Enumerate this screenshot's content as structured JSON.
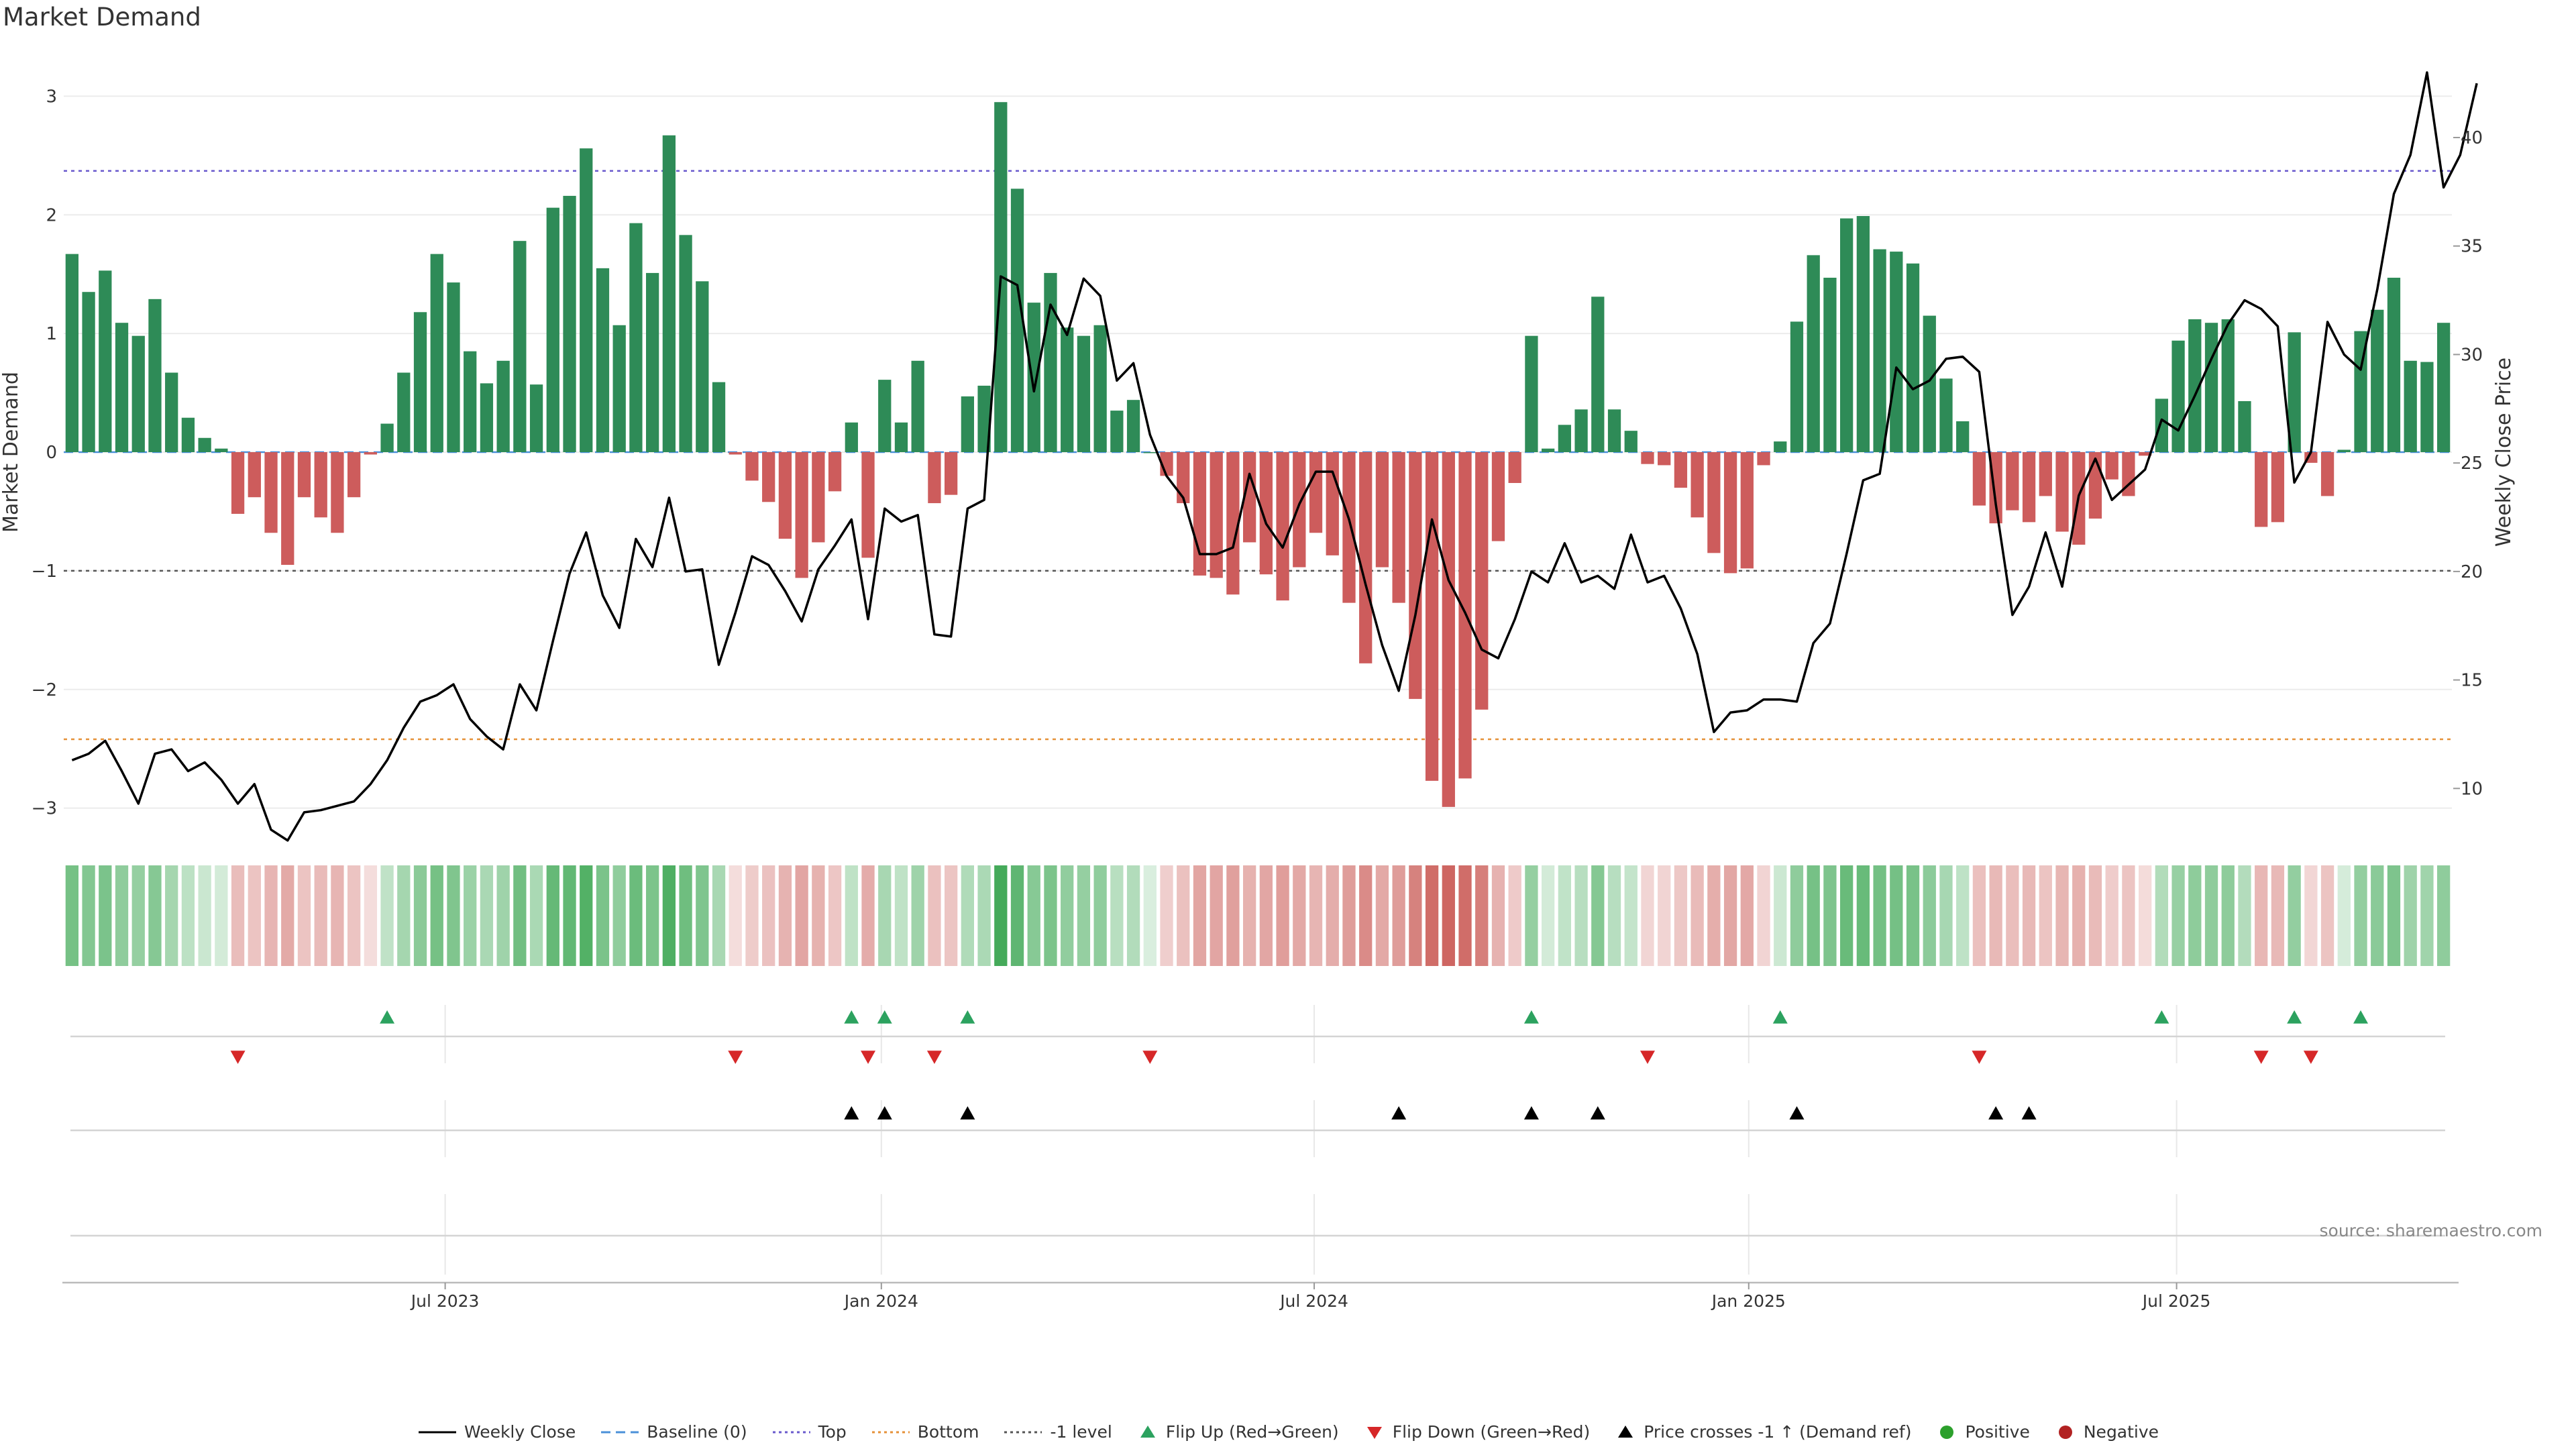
{
  "title": "Market Demand",
  "source": "source: sharemaestro.com",
  "legend": {
    "weekly_close": "Weekly Close",
    "baseline": "Baseline (0)",
    "top": "Top",
    "bottom": "Bottom",
    "minus1": "-1 level",
    "flip_up": "Flip Up (Red→Green)",
    "flip_down": "Flip Down (Green→Red)",
    "price_cross": "Price crosses -1 ↑ (Demand ref)",
    "positive": "Positive",
    "negative": "Negative"
  },
  "colors": {
    "positive": "#2e8b57",
    "negative": "#cd5c5c",
    "price": "#000000",
    "top": "#6a5acd",
    "bottom": "#e69138",
    "minus1": "#555555",
    "baseline": "#4a90d9",
    "flip_up": "#2ca25f",
    "flip_down": "#d62728",
    "positive_dot": "#2ca02c",
    "negative_dot": "#b22222"
  },
  "chart_data": {
    "type": "bar",
    "title": "Market Demand",
    "ylabel": "Market Demand",
    "y2label": "Weekly Close Price",
    "ylim": [
      -3.2,
      3.2
    ],
    "y2lim": [
      8,
      43
    ],
    "yticks": [
      3,
      2,
      1,
      0,
      -1,
      -2,
      -3
    ],
    "ytick_labels": [
      "3",
      "2",
      "1",
      "0",
      "−1",
      "−2",
      "−3"
    ],
    "y2ticks": [
      10,
      15,
      20,
      25,
      30,
      35,
      40
    ],
    "y2tick_labels": [
      "10",
      "15",
      "20",
      "25",
      "30",
      "35",
      "40"
    ],
    "xticks": [
      22.5,
      48.8,
      74.9,
      101.1,
      126.9
    ],
    "xtick_labels": [
      "Jul 2023",
      "Jan 2024",
      "Jul 2024",
      "Jan 2025",
      "Jul 2025"
    ],
    "reference_lines": {
      "top": 2.37,
      "bottom": -2.42,
      "minus1": -1,
      "baseline": 0
    },
    "demand": [
      1.67,
      1.35,
      1.53,
      1.09,
      0.98,
      1.29,
      0.67,
      0.29,
      0.12,
      0.03,
      -0.52,
      -0.38,
      -0.68,
      -0.95,
      -0.38,
      -0.55,
      -0.68,
      -0.38,
      -0.02,
      0.24,
      0.67,
      1.18,
      1.67,
      1.43,
      0.85,
      0.58,
      0.77,
      1.78,
      0.57,
      2.06,
      2.16,
      2.56,
      1.55,
      1.07,
      1.93,
      1.51,
      2.67,
      1.83,
      1.44,
      0.59,
      -0.02,
      -0.24,
      -0.42,
      -0.73,
      -1.06,
      -0.76,
      -0.33,
      0.25,
      -0.89,
      0.61,
      0.25,
      0.77,
      -0.43,
      -0.36,
      0.47,
      0.56,
      2.95,
      2.22,
      1.26,
      1.51,
      1.05,
      0.98,
      1.07,
      0.35,
      0.44,
      0,
      -0.2,
      -0.43,
      -1.04,
      -1.06,
      -1.2,
      -0.76,
      -1.03,
      -1.25,
      -0.97,
      -0.68,
      -0.87,
      -1.27,
      -1.78,
      -0.97,
      -1.27,
      -2.08,
      -2.77,
      -2.99,
      -2.75,
      -2.17,
      -0.75,
      -0.26,
      0.98,
      0.03,
      0.23,
      0.36,
      1.31,
      0.36,
      0.18,
      -0.1,
      -0.11,
      -0.3,
      -0.55,
      -0.85,
      -1.02,
      -0.98,
      -0.11,
      0.09,
      1.1,
      1.66,
      1.47,
      1.97,
      1.99,
      1.71,
      1.69,
      1.59,
      1.15,
      0.62,
      0.26,
      -0.45,
      -0.6,
      -0.49,
      -0.59,
      -0.37,
      -0.67,
      -0.78,
      -0.56,
      -0.23,
      -0.37,
      -0.03,
      0.45,
      0.94,
      1.12,
      1.09,
      1.12,
      0.43,
      -0.63,
      -0.59,
      1.01,
      -0.09,
      -0.37,
      0.02,
      1.02,
      1.2,
      1.47,
      0.77,
      0.76,
      1.09
    ],
    "price": [
      11.3,
      11.6,
      12.2,
      10.8,
      9.3,
      11.6,
      11.8,
      10.8,
      11.2,
      10.4,
      9.3,
      10.2,
      8.1,
      7.6,
      8.9,
      9.0,
      9.2,
      9.4,
      10.2,
      11.3,
      12.8,
      14.0,
      14.3,
      14.8,
      13.2,
      12.4,
      11.8,
      14.8,
      13.6,
      16.8,
      19.9,
      21.8,
      18.9,
      17.4,
      21.5,
      20.2,
      23.4,
      20.0,
      20.1,
      15.7,
      18.1,
      20.7,
      20.3,
      19.1,
      17.7,
      20.1,
      21.2,
      22.4,
      17.8,
      22.9,
      22.3,
      22.6,
      17.1,
      17.0,
      22.9,
      23.3,
      33.6,
      33.2,
      28.3,
      32.3,
      30.9,
      33.5,
      32.7,
      28.8,
      29.6,
      26.3,
      24.4,
      23.4,
      20.8,
      20.8,
      21.1,
      24.5,
      22.2,
      21.1,
      23.1,
      24.6,
      24.6,
      22.4,
      19.4,
      16.6,
      14.5,
      18.0,
      22.4,
      19.6,
      18.1,
      16.4,
      16.0,
      17.8,
      20.0,
      19.5,
      21.3,
      19.5,
      19.8,
      19.2,
      21.7,
      19.5,
      19.8,
      18.3,
      16.2,
      12.6,
      13.5,
      13.6,
      14.1,
      14.1,
      14.0,
      16.7,
      17.6,
      20.8,
      24.2,
      24.5,
      29.4,
      28.4,
      28.8,
      29.8,
      29.9,
      29.2,
      23.1,
      18.0,
      19.3,
      21.8,
      19.3,
      23.5,
      25.2,
      23.3,
      24.0,
      24.7,
      27.0,
      26.5,
      28.1,
      29.8,
      31.4,
      32.5,
      32.1,
      31.3,
      24.1,
      25.5,
      31.5,
      30.0,
      29.3,
      33.0,
      37.4,
      39.2,
      43.0,
      37.7,
      39.2,
      42.5
    ],
    "flip_up": [
      19,
      47,
      49,
      54,
      88,
      103,
      126,
      134,
      138
    ],
    "flip_down": [
      10,
      40,
      48,
      52,
      65,
      95,
      115,
      132,
      135
    ],
    "price_cross": [
      47,
      49,
      54,
      80,
      88,
      92,
      104,
      116,
      118
    ]
  }
}
